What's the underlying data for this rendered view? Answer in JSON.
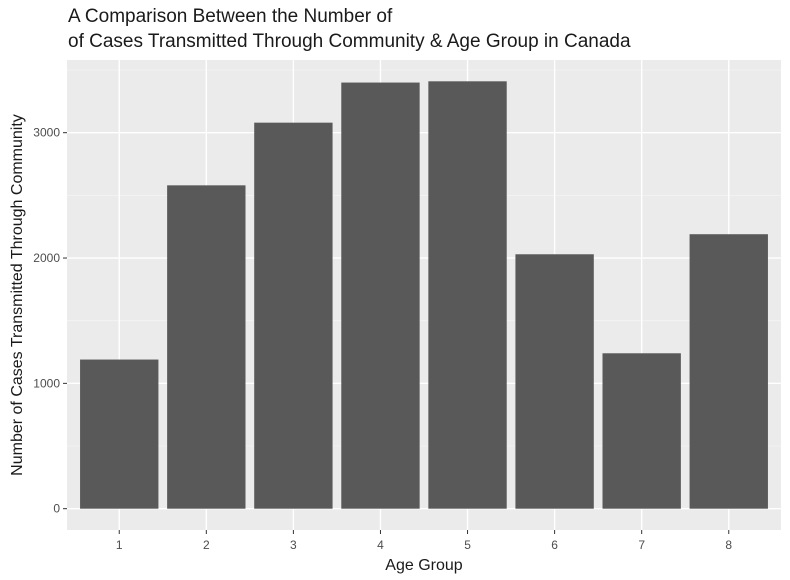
{
  "chart_data": {
    "type": "bar",
    "title_lines": [
      "A Comparison Between the Number of",
      "of Cases Transmitted Through Community & Age Group in Canada"
    ],
    "xlabel": "Age Group",
    "ylabel": "Number of Cases Transmitted Through Community",
    "categories": [
      "1",
      "2",
      "3",
      "4",
      "5",
      "6",
      "7",
      "8"
    ],
    "values": [
      1190,
      2580,
      3080,
      3400,
      3410,
      2030,
      1240,
      2190
    ],
    "y_ticks": [
      0,
      1000,
      2000,
      3000
    ],
    "y_tick_labels": [
      "0",
      "1000",
      "2000",
      "3000"
    ],
    "ylim": [
      -170,
      3580
    ],
    "grid": true,
    "colors": {
      "bar": "#595959",
      "panel_background": "#ebebeb",
      "grid_major": "#ffffff",
      "grid_minor": "#f5f5f5"
    }
  }
}
